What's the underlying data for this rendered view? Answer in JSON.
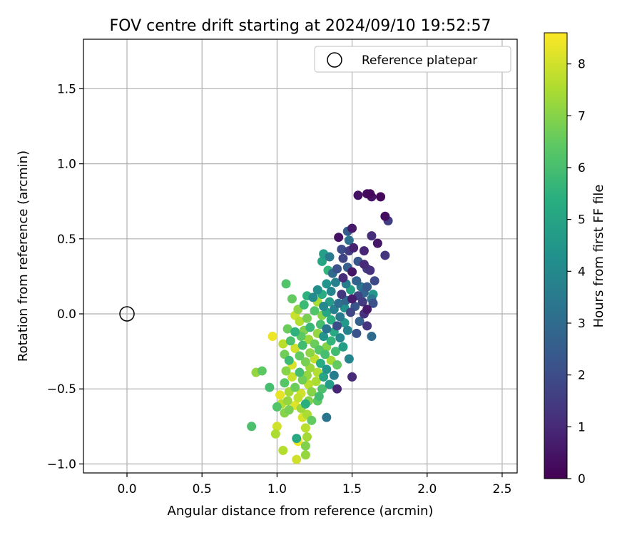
{
  "chart_data": {
    "type": "scatter",
    "title": "FOV centre drift starting at 2024/09/10 19:52:57",
    "xlabel": "Angular distance from reference (arcmin)",
    "ylabel": "Rotation from reference (arcmin)",
    "xlim": [
      -0.29,
      2.6
    ],
    "ylim": [
      -1.06,
      1.83
    ],
    "xticks": [
      0.0,
      0.5,
      1.0,
      1.5,
      2.0,
      2.5
    ],
    "xtick_labels": [
      "0.0",
      "0.5",
      "1.0",
      "1.5",
      "2.0",
      "2.5"
    ],
    "yticks": [
      -1.0,
      -0.5,
      0.0,
      0.5,
      1.0,
      1.5
    ],
    "ytick_labels": [
      "−1.0",
      "−0.5",
      "0.0",
      "0.5",
      "1.0",
      "1.5"
    ],
    "grid": true,
    "legend": {
      "position": "top-right",
      "entries": [
        "Reference platepar"
      ]
    },
    "reference_point": {
      "x": 0.0,
      "y": 0.0,
      "label": "Reference platepar"
    },
    "colorbar": {
      "label": "Hours from first FF file",
      "range": [
        0,
        8.6
      ],
      "ticks": [
        0,
        1,
        2,
        3,
        4,
        5,
        6,
        7,
        8
      ],
      "colormap": "viridis"
    },
    "series": [
      {
        "fields": [
          "x",
          "y",
          "hours"
        ],
        "points": [
          [
            1.6,
            0.8,
            0.3
          ],
          [
            1.62,
            0.8,
            0.2
          ],
          [
            1.54,
            0.79,
            0.4
          ],
          [
            1.63,
            0.78,
            0.5
          ],
          [
            1.69,
            0.78,
            0.2
          ],
          [
            1.72,
            0.65,
            0.3
          ],
          [
            1.74,
            0.62,
            1.5
          ],
          [
            1.5,
            0.57,
            0.6
          ],
          [
            1.63,
            0.52,
            1.1
          ],
          [
            1.41,
            0.51,
            0.4
          ],
          [
            1.47,
            0.55,
            2.5
          ],
          [
            1.48,
            0.49,
            3.2
          ],
          [
            1.67,
            0.47,
            0.5
          ],
          [
            1.51,
            0.44,
            0.8
          ],
          [
            1.43,
            0.43,
            2.0
          ],
          [
            1.48,
            0.42,
            1.5
          ],
          [
            1.58,
            0.42,
            0.9
          ],
          [
            1.72,
            0.39,
            1.3
          ],
          [
            1.35,
            0.38,
            3.5
          ],
          [
            1.31,
            0.4,
            4.8
          ],
          [
            1.44,
            0.37,
            1.8
          ],
          [
            1.54,
            0.35,
            2.3
          ],
          [
            1.58,
            0.33,
            1.0
          ],
          [
            1.6,
            0.3,
            1.6
          ],
          [
            1.47,
            0.31,
            2.6
          ],
          [
            1.4,
            0.3,
            2.2
          ],
          [
            1.3,
            0.35,
            5.0
          ],
          [
            1.5,
            0.28,
            0.5
          ],
          [
            1.62,
            0.29,
            1.2
          ],
          [
            1.34,
            0.29,
            5.6
          ],
          [
            1.37,
            0.27,
            3.0
          ],
          [
            1.44,
            0.24,
            1.1
          ],
          [
            1.53,
            0.22,
            2.7
          ],
          [
            1.65,
            0.22,
            1.9
          ],
          [
            1.39,
            0.21,
            3.8
          ],
          [
            1.33,
            0.2,
            4.4
          ],
          [
            1.46,
            0.2,
            3.6
          ],
          [
            1.56,
            0.18,
            3.3
          ],
          [
            1.6,
            0.18,
            2.4
          ],
          [
            1.49,
            0.16,
            4.9
          ],
          [
            1.27,
            0.16,
            4.2
          ],
          [
            1.36,
            0.15,
            3.9
          ],
          [
            1.58,
            0.14,
            2.8
          ],
          [
            1.3,
            0.13,
            5.3
          ],
          [
            1.43,
            0.13,
            1.4
          ],
          [
            1.64,
            0.13,
            4.5
          ],
          [
            1.2,
            0.12,
            5.5
          ],
          [
            1.54,
            0.12,
            1.7
          ],
          [
            1.24,
            0.11,
            4.1
          ],
          [
            1.5,
            0.1,
            0.7
          ],
          [
            1.63,
            0.1,
            3.4
          ],
          [
            1.1,
            0.1,
            6.5
          ],
          [
            1.46,
            0.09,
            2.9
          ],
          [
            1.35,
            0.08,
            4.7
          ],
          [
            1.27,
            0.08,
            7.5
          ],
          [
            1.57,
            0.08,
            1.5
          ],
          [
            1.41,
            0.07,
            3.1
          ],
          [
            1.64,
            0.07,
            2.1
          ],
          [
            1.18,
            0.06,
            5.8
          ],
          [
            1.31,
            0.05,
            4.0
          ],
          [
            1.52,
            0.05,
            2.3
          ],
          [
            1.45,
            0.04,
            4.3
          ],
          [
            1.6,
            0.03,
            0.6
          ],
          [
            1.38,
            0.03,
            3.7
          ],
          [
            1.25,
            0.02,
            6.2
          ],
          [
            1.33,
            0.01,
            5.1
          ],
          [
            1.49,
            0.01,
            1.8
          ],
          [
            1.58,
            0.0,
            1.2
          ],
          [
            1.3,
            -0.01,
            7.0
          ],
          [
            1.12,
            -0.01,
            7.9
          ],
          [
            1.42,
            -0.02,
            3.5
          ],
          [
            1.2,
            -0.03,
            6.8
          ],
          [
            1.36,
            -0.04,
            5.4
          ],
          [
            1.15,
            -0.05,
            7.6
          ],
          [
            1.55,
            -0.05,
            2.6
          ],
          [
            1.45,
            -0.06,
            4.6
          ],
          [
            1.29,
            -0.07,
            6.0
          ],
          [
            1.4,
            -0.08,
            2.0
          ],
          [
            1.6,
            -0.08,
            1.3
          ],
          [
            1.22,
            -0.09,
            5.7
          ],
          [
            1.33,
            -0.1,
            3.3
          ],
          [
            1.18,
            -0.11,
            6.9
          ],
          [
            1.12,
            -0.12,
            5.5
          ],
          [
            1.47,
            -0.11,
            3.8
          ],
          [
            1.38,
            -0.12,
            5.2
          ],
          [
            1.27,
            -0.13,
            7.2
          ],
          [
            1.53,
            -0.13,
            2.2
          ],
          [
            1.63,
            -0.15,
            3.0
          ],
          [
            1.16,
            -0.15,
            6.4
          ],
          [
            1.31,
            -0.15,
            4.4
          ],
          [
            1.42,
            -0.16,
            4.0
          ],
          [
            1.21,
            -0.17,
            7.3
          ],
          [
            1.09,
            -0.18,
            6.1
          ],
          [
            1.36,
            -0.18,
            5.6
          ],
          [
            1.25,
            -0.2,
            6.6
          ],
          [
            0.97,
            -0.15,
            8.4
          ],
          [
            1.04,
            -0.2,
            7.7
          ],
          [
            1.17,
            -0.21,
            5.9
          ],
          [
            1.33,
            -0.22,
            7.0
          ],
          [
            1.12,
            -0.23,
            8.0
          ],
          [
            1.44,
            -0.22,
            4.8
          ],
          [
            1.28,
            -0.24,
            6.3
          ],
          [
            1.39,
            -0.25,
            5.9
          ],
          [
            1.22,
            -0.26,
            7.1
          ],
          [
            1.05,
            -0.27,
            6.7
          ],
          [
            1.32,
            -0.27,
            6.0
          ],
          [
            1.15,
            -0.28,
            6.5
          ],
          [
            1.25,
            -0.3,
            7.8
          ],
          [
            1.08,
            -0.31,
            5.8
          ],
          [
            1.36,
            -0.31,
            7.4
          ],
          [
            1.48,
            -0.3,
            3.9
          ],
          [
            1.19,
            -0.32,
            6.8
          ],
          [
            1.29,
            -0.33,
            5.3
          ],
          [
            1.1,
            -0.34,
            8.1
          ],
          [
            1.4,
            -0.34,
            6.5
          ],
          [
            1.22,
            -0.36,
            7.3
          ],
          [
            1.33,
            -0.37,
            4.5
          ],
          [
            1.06,
            -0.38,
            7.0
          ],
          [
            1.15,
            -0.39,
            6.0
          ],
          [
            1.27,
            -0.39,
            7.6
          ],
          [
            0.9,
            -0.38,
            6.4
          ],
          [
            1.38,
            -0.41,
            3.6
          ],
          [
            1.2,
            -0.41,
            7.2
          ],
          [
            1.31,
            -0.42,
            5.0
          ],
          [
            1.1,
            -0.42,
            7.9
          ],
          [
            1.5,
            -0.42,
            1.0
          ],
          [
            1.17,
            -0.44,
            6.7
          ],
          [
            1.26,
            -0.45,
            7.5
          ],
          [
            1.05,
            -0.46,
            6.3
          ],
          [
            1.35,
            -0.47,
            4.7
          ],
          [
            1.21,
            -0.47,
            7.7
          ],
          [
            1.12,
            -0.49,
            6.6
          ],
          [
            1.3,
            -0.5,
            6.1
          ],
          [
            1.4,
            -0.5,
            0.9
          ],
          [
            0.95,
            -0.49,
            6.0
          ],
          [
            1.23,
            -0.52,
            7.0
          ],
          [
            1.08,
            -0.52,
            7.4
          ],
          [
            1.16,
            -0.53,
            8.0
          ],
          [
            1.02,
            -0.54,
            8.3
          ],
          [
            1.28,
            -0.55,
            5.9
          ],
          [
            1.14,
            -0.56,
            7.8
          ],
          [
            1.21,
            -0.58,
            6.9
          ],
          [
            1.07,
            -0.58,
            7.2
          ],
          [
            1.19,
            -0.6,
            5.4
          ],
          [
            1.03,
            -0.6,
            7.6
          ],
          [
            1.27,
            -0.58,
            6.4
          ],
          [
            1.12,
            -0.61,
            8.2
          ],
          [
            1.0,
            -0.62,
            6.2
          ],
          [
            1.16,
            -0.63,
            7.3
          ],
          [
            1.08,
            -0.64,
            6.8
          ],
          [
            1.05,
            -0.66,
            7.0
          ],
          [
            1.2,
            -0.67,
            7.5
          ],
          [
            1.17,
            -0.69,
            8.1
          ],
          [
            1.33,
            -0.69,
            3.3
          ],
          [
            1.23,
            -0.71,
            6.5
          ],
          [
            1.0,
            -0.75,
            8.0
          ],
          [
            0.83,
            -0.75,
            6.1
          ],
          [
            1.19,
            -0.76,
            7.7
          ],
          [
            0.99,
            -0.8,
            7.5
          ],
          [
            1.2,
            -0.82,
            7.4
          ],
          [
            1.13,
            -0.83,
            5.2
          ],
          [
            1.14,
            -0.85,
            8.4
          ],
          [
            1.19,
            -0.88,
            6.9
          ],
          [
            1.04,
            -0.91,
            7.6
          ],
          [
            1.19,
            -0.94,
            7.2
          ],
          [
            1.13,
            -0.97,
            8.0
          ],
          [
            0.86,
            -0.39,
            7.2
          ],
          [
            1.06,
            0.2,
            6.2
          ],
          [
            1.14,
            0.03,
            7.1
          ],
          [
            1.07,
            -0.1,
            6.6
          ]
        ]
      }
    ]
  }
}
